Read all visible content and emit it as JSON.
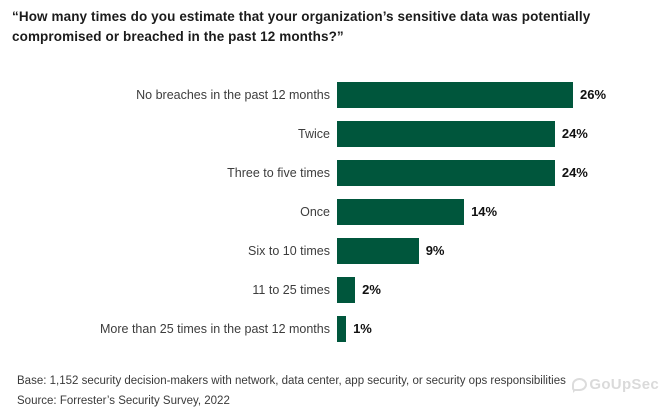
{
  "header": {
    "title": "“How many times do you estimate that your organization’s sensitive data was potentially compromised or breached in the past 12 months?”"
  },
  "chart_data": {
    "type": "bar",
    "orientation": "horizontal",
    "title": "“How many times do you estimate that your organization’s sensitive data was potentially compromised or breached in the past 12 months?”",
    "categories": [
      "No breaches in the past 12 months",
      "Twice",
      "Three to five times",
      "Once",
      "Six to 10 times",
      "11 to 25 times",
      "More than 25 times in the past 12 months"
    ],
    "values": [
      26,
      24,
      24,
      14,
      9,
      2,
      1
    ],
    "value_labels": [
      "26%",
      "24%",
      "24%",
      "14%",
      "9%",
      "2%",
      "1%"
    ],
    "value_suffix": "%",
    "xlim": [
      0,
      26
    ],
    "bar_color": "#00563C",
    "grid": false,
    "legend": "none",
    "xlabel": "",
    "ylabel": ""
  },
  "footer": {
    "base_note": "Base: 1,152 security decision-makers with network, data center, app security, or security ops responsibilities",
    "source_note": "Source: Forrester’s Security Survey, 2022"
  },
  "watermark": {
    "text": "GoUpSec",
    "icon": "speech-bubble-icon",
    "color": "#bdbdbd"
  }
}
